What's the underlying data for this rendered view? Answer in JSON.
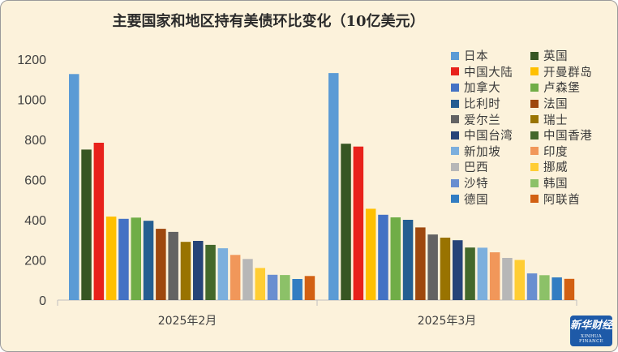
{
  "chart_data": {
    "type": "bar",
    "title": "主要国家和地区持有美债环比变化（10亿美元）",
    "categories": [
      "2025年2月",
      "2025年3月"
    ],
    "ylim": [
      0,
      1200
    ],
    "yticks": [
      0,
      200,
      400,
      600,
      800,
      1000,
      1200
    ],
    "grid": false,
    "legend_position": "right",
    "series": [
      {
        "name": "日本",
        "color": "#5B9BD5",
        "values": [
          1126,
          1131
        ]
      },
      {
        "name": "英国",
        "color": "#375623",
        "values": [
          750,
          779
        ]
      },
      {
        "name": "中国大陆",
        "color": "#E8221B",
        "values": [
          784,
          765
        ]
      },
      {
        "name": "开曼群岛",
        "color": "#FFC000",
        "values": [
          416,
          455
        ]
      },
      {
        "name": "加拿大",
        "color": "#4472C4",
        "values": [
          405,
          425
        ]
      },
      {
        "name": "卢森堡",
        "color": "#70AD47",
        "values": [
          411,
          412
        ]
      },
      {
        "name": "比利时",
        "color": "#255E91",
        "values": [
          395,
          400
        ]
      },
      {
        "name": "法国",
        "color": "#9E480E",
        "values": [
          355,
          362
        ]
      },
      {
        "name": "爱尔兰",
        "color": "#636363",
        "values": [
          340,
          327
        ]
      },
      {
        "name": "瑞士",
        "color": "#997300",
        "values": [
          290,
          311
        ]
      },
      {
        "name": "中国台湾",
        "color": "#264478",
        "values": [
          295,
          298
        ]
      },
      {
        "name": "中国香港",
        "color": "#43682B",
        "values": [
          275,
          262
        ]
      },
      {
        "name": "新加坡",
        "color": "#7CAFDD",
        "values": [
          258,
          261
        ]
      },
      {
        "name": "印度",
        "color": "#F1975A",
        "values": [
          225,
          238
        ]
      },
      {
        "name": "巴西",
        "color": "#B7B7B7",
        "values": [
          205,
          210
        ]
      },
      {
        "name": "挪威",
        "color": "#FFCD33",
        "values": [
          160,
          200
        ]
      },
      {
        "name": "沙特",
        "color": "#698ED0",
        "values": [
          126,
          133
        ]
      },
      {
        "name": "韩国",
        "color": "#8CC168",
        "values": [
          125,
          124
        ]
      },
      {
        "name": "德国",
        "color": "#327DC2",
        "values": [
          105,
          113
        ]
      },
      {
        "name": "阿联酋",
        "color": "#D26012",
        "values": [
          120,
          106
        ]
      }
    ]
  },
  "logo": {
    "main": "新华财经",
    "sub": "XINHUA FINANCE"
  }
}
